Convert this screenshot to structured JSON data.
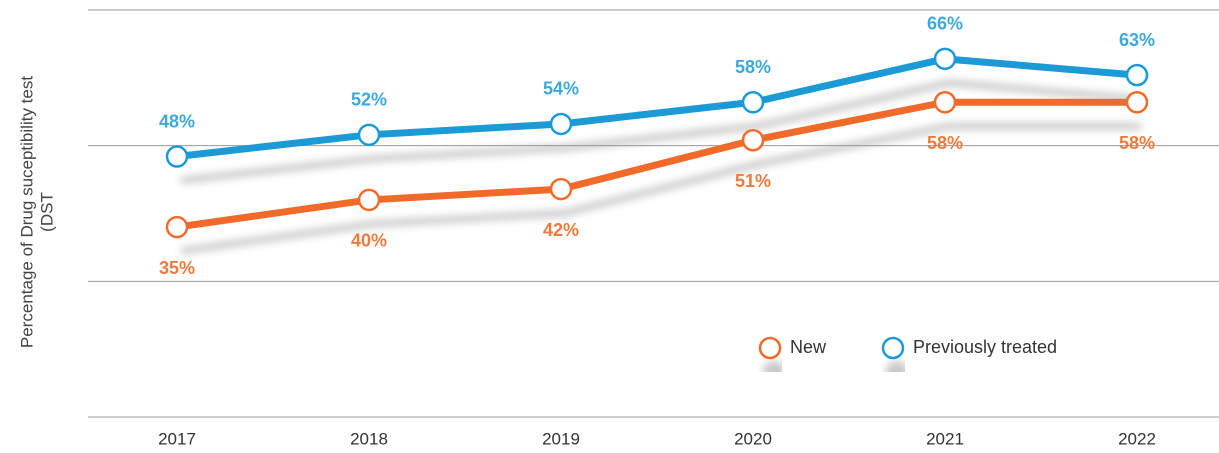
{
  "chart_data": {
    "type": "line",
    "y_label_lines": [
      "Percentage of Drug suceptibility test",
      "(DST"
    ],
    "categories": [
      "2017",
      "2018",
      "2019",
      "2020",
      "2021",
      "2022"
    ],
    "series": [
      {
        "name": "New",
        "color": "#f26b2a",
        "label_color": "#f07a3c",
        "values": [
          35,
          40,
          42,
          51,
          58,
          58
        ],
        "value_labels": [
          "35%",
          "40%",
          "42%",
          "51%",
          "58%",
          "58%"
        ]
      },
      {
        "name": "Previously treated",
        "color": "#1a9ad6",
        "label_color": "#3aa9dc",
        "values": [
          48,
          52,
          54,
          58,
          66,
          63
        ],
        "value_labels": [
          "48%",
          "52%",
          "54%",
          "58%",
          "66%",
          "63%"
        ]
      }
    ],
    "ylim": [
      0,
      75
    ],
    "yticks": [
      0,
      25,
      50,
      75
    ],
    "grid": true
  }
}
